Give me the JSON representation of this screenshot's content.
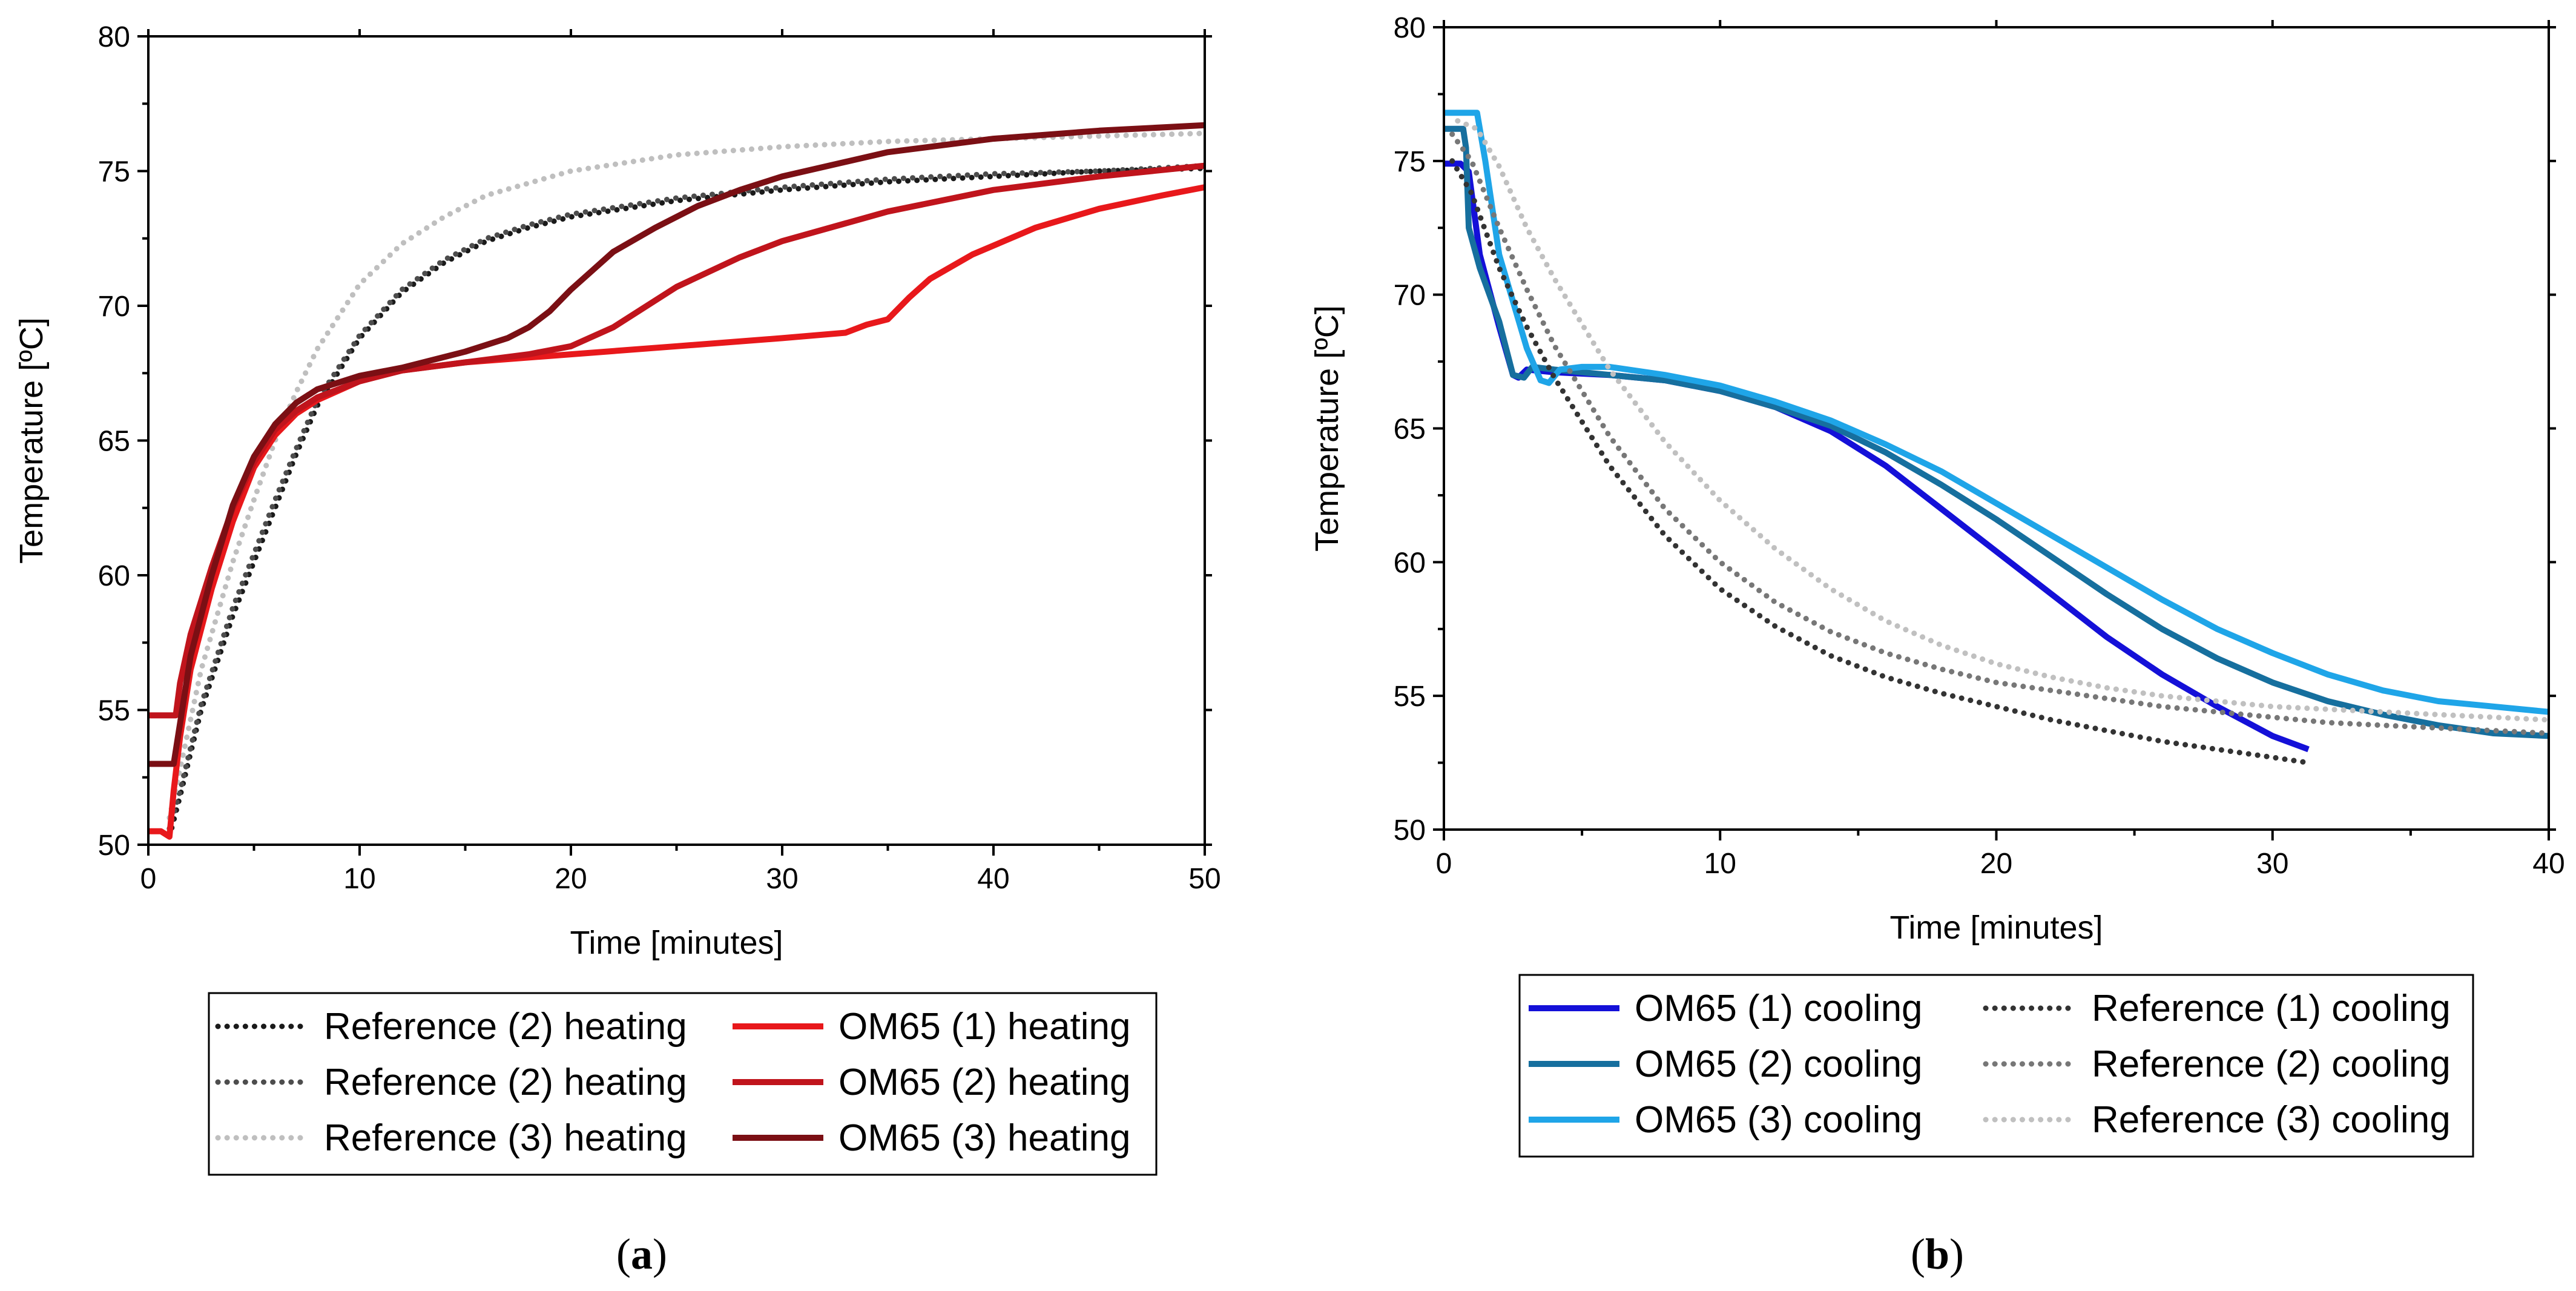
{
  "chart_data": [
    {
      "type": "line",
      "panel": "a",
      "caption_open": "(",
      "caption": "a",
      "caption_close": ")",
      "xlabel": "Time [minutes]",
      "ylabel": "Temperature [ºC]",
      "xlim": [
        0,
        50
      ],
      "ylim": [
        50,
        80
      ],
      "xticks": [
        0,
        10,
        20,
        30,
        40,
        50
      ],
      "yticks": [
        50,
        55,
        60,
        65,
        70,
        75,
        80
      ],
      "legend_position": "below",
      "series": [
        {
          "name": "Reference (2) heating",
          "style": "dotted",
          "color": "#1a1a1a",
          "x": [
            1.0,
            1.5,
            2.5,
            4,
            5,
            6,
            7,
            8,
            10,
            12,
            14,
            16,
            18,
            20,
            25,
            30,
            35,
            40,
            45,
            50
          ],
          "y": [
            50.3,
            51.8,
            55.0,
            58.5,
            60.5,
            62.5,
            64.5,
            66.3,
            68.8,
            70.5,
            71.6,
            72.4,
            72.9,
            73.3,
            73.9,
            74.3,
            74.6,
            74.8,
            75.0,
            75.1
          ]
        },
        {
          "name": "Reference (2) heating",
          "style": "dotted",
          "color": "#4d4d4d",
          "x": [
            1.0,
            1.5,
            2.5,
            4,
            5,
            6,
            7,
            8,
            10,
            12,
            14,
            16,
            18,
            20,
            25,
            30,
            35,
            40,
            45,
            50
          ],
          "y": [
            50.6,
            52.0,
            55.2,
            58.8,
            60.8,
            62.8,
            64.7,
            66.5,
            68.9,
            70.6,
            71.7,
            72.5,
            73.0,
            73.4,
            74.0,
            74.4,
            74.7,
            74.9,
            75.0,
            75.2
          ]
        },
        {
          "name": "Reference (3) heating",
          "style": "dotted",
          "color": "#bfbfbf",
          "x": [
            1.0,
            1.5,
            2.5,
            4,
            5,
            6,
            7,
            8,
            10,
            12,
            14,
            16,
            20,
            25,
            30,
            35,
            40,
            45,
            50
          ],
          "y": [
            51.0,
            52.8,
            56.5,
            60.5,
            62.8,
            65.0,
            66.8,
            68.4,
            70.8,
            72.3,
            73.3,
            74.1,
            75.0,
            75.6,
            75.9,
            76.1,
            76.2,
            76.3,
            76.4
          ]
        },
        {
          "name": "OM65 (1) heating",
          "style": "solid",
          "color": "#e8181b",
          "x": [
            0,
            0.6,
            1.0,
            1.2,
            1.5,
            2.0,
            3.0,
            4.0,
            5.0,
            6.0,
            7.0,
            8.0,
            10,
            12,
            15,
            20,
            25,
            30,
            33,
            34,
            35,
            36,
            37,
            39,
            42,
            45,
            48,
            50
          ],
          "y": [
            50.5,
            50.5,
            50.3,
            52.0,
            54.0,
            56.5,
            59.5,
            62.0,
            64.0,
            65.2,
            66.0,
            66.5,
            67.2,
            67.6,
            67.9,
            68.2,
            68.5,
            68.8,
            69.0,
            69.3,
            69.5,
            70.3,
            71.0,
            71.9,
            72.9,
            73.6,
            74.1,
            74.4
          ]
        },
        {
          "name": "OM65 (2) heating",
          "style": "solid",
          "color": "#c0141c",
          "x": [
            0,
            1.3,
            1.5,
            2.0,
            3.0,
            4.0,
            5.0,
            6.0,
            7.0,
            8.0,
            10,
            12,
            15,
            18,
            20,
            22,
            25,
            28,
            30,
            35,
            40,
            45,
            50
          ],
          "y": [
            54.8,
            54.8,
            56.0,
            57.8,
            60.3,
            62.5,
            64.2,
            65.4,
            66.1,
            66.6,
            67.2,
            67.6,
            67.9,
            68.2,
            68.5,
            69.2,
            70.7,
            71.8,
            72.4,
            73.5,
            74.3,
            74.8,
            75.2
          ]
        },
        {
          "name": "OM65 (3) heating",
          "style": "solid",
          "color": "#7b0f14",
          "x": [
            0,
            1.2,
            1.5,
            2.0,
            3.0,
            4.0,
            5.0,
            6.0,
            7.0,
            8.0,
            10,
            12,
            15,
            17,
            18,
            19,
            20,
            21,
            22,
            24,
            26,
            28,
            30,
            35,
            40,
            45,
            50
          ],
          "y": [
            53.0,
            53.0,
            54.5,
            57.0,
            60.0,
            62.6,
            64.4,
            65.6,
            66.4,
            66.9,
            67.4,
            67.7,
            68.3,
            68.8,
            69.2,
            69.8,
            70.6,
            71.3,
            72.0,
            72.9,
            73.7,
            74.3,
            74.8,
            75.7,
            76.2,
            76.5,
            76.7
          ]
        }
      ]
    },
    {
      "type": "line",
      "panel": "b",
      "caption_open": "(",
      "caption": "b",
      "caption_close": ")",
      "xlabel": "Time [minutes]",
      "ylabel": "Temperature [ºC]",
      "xlim": [
        0,
        40
      ],
      "ylim": [
        50,
        80
      ],
      "xticks": [
        0,
        10,
        20,
        30,
        40
      ],
      "yticks": [
        50,
        55,
        60,
        65,
        70,
        75,
        80
      ],
      "legend_position": "below",
      "series": [
        {
          "name": "OM65 (1) cooling",
          "style": "solid",
          "color": "#1410d8",
          "x": [
            0,
            0.6,
            0.9,
            1.3,
            2.0,
            2.5,
            2.7,
            3.0,
            4.0,
            6,
            8,
            10,
            12,
            14,
            16,
            18,
            20,
            22,
            24,
            26,
            28,
            30,
            31.3
          ],
          "y": [
            74.9,
            74.9,
            74.6,
            71.5,
            68.8,
            67.0,
            66.9,
            67.2,
            67.1,
            67.0,
            66.8,
            66.4,
            65.8,
            64.9,
            63.6,
            62.0,
            60.4,
            58.8,
            57.2,
            55.8,
            54.6,
            53.5,
            53.0
          ]
        },
        {
          "name": "OM65 (2) cooling",
          "style": "solid",
          "color": "#166f9e",
          "x": [
            0,
            0.7,
            0.8,
            0.9,
            1.3,
            2.0,
            2.5,
            2.9,
            3.2,
            4.0,
            6,
            8,
            10,
            12,
            14,
            16,
            18,
            20,
            22,
            24,
            26,
            28,
            30,
            32,
            34,
            36,
            38,
            40
          ],
          "y": [
            76.2,
            76.2,
            75.5,
            72.5,
            71.0,
            69.0,
            67.0,
            66.9,
            67.3,
            67.2,
            67.0,
            66.8,
            66.4,
            65.8,
            65.1,
            64.1,
            62.9,
            61.6,
            60.2,
            58.8,
            57.5,
            56.4,
            55.5,
            54.8,
            54.3,
            53.9,
            53.6,
            53.5
          ]
        },
        {
          "name": "OM65 (3) cooling",
          "style": "solid",
          "color": "#1fa5e8",
          "x": [
            0,
            1.2,
            1.5,
            2.0,
            3.0,
            3.5,
            3.8,
            4.2,
            5.0,
            6,
            8,
            10,
            12,
            14,
            16,
            18,
            20,
            22,
            24,
            26,
            28,
            30,
            32,
            34,
            36,
            38,
            40
          ],
          "y": [
            76.8,
            76.8,
            75.0,
            71.5,
            68.0,
            66.8,
            66.7,
            67.2,
            67.3,
            67.3,
            67.0,
            66.6,
            66.0,
            65.3,
            64.4,
            63.4,
            62.2,
            61.0,
            59.8,
            58.6,
            57.5,
            56.6,
            55.8,
            55.2,
            54.8,
            54.6,
            54.4
          ]
        },
        {
          "name": "Reference (1) cooling",
          "style": "dotted",
          "color": "#333333",
          "x": [
            0.3,
            1.0,
            2.0,
            3.0,
            4.0,
            6,
            8,
            10,
            12,
            14,
            16,
            18,
            20,
            22,
            24,
            26,
            28,
            30,
            31.3
          ],
          "y": [
            75.0,
            73.8,
            71.0,
            68.8,
            66.9,
            63.6,
            61.0,
            59.0,
            57.6,
            56.5,
            55.7,
            55.1,
            54.6,
            54.1,
            53.7,
            53.3,
            53.0,
            52.7,
            52.5
          ]
        },
        {
          "name": "Reference (2) cooling",
          "style": "dotted",
          "color": "#777777",
          "x": [
            0.3,
            1.0,
            2.0,
            3.0,
            4.0,
            6,
            8,
            10,
            12,
            14,
            16,
            18,
            20,
            22,
            24,
            26,
            28,
            30,
            32,
            34,
            36,
            38,
            40
          ],
          "y": [
            76.0,
            75.0,
            72.5,
            70.2,
            68.1,
            64.7,
            62.0,
            60.0,
            58.5,
            57.4,
            56.6,
            56.0,
            55.5,
            55.2,
            54.9,
            54.6,
            54.4,
            54.2,
            54.0,
            53.9,
            53.8,
            53.7,
            53.6
          ]
        },
        {
          "name": "Reference (3) cooling",
          "style": "dotted",
          "color": "#c0c0c0",
          "x": [
            0.5,
            1.2,
            2.0,
            3.0,
            4.0,
            6,
            8,
            10,
            12,
            14,
            16,
            18,
            20,
            22,
            24,
            26,
            28,
            30,
            32,
            34,
            36,
            38,
            40
          ],
          "y": [
            76.5,
            76.2,
            74.8,
            72.5,
            70.6,
            67.2,
            64.5,
            62.3,
            60.5,
            59.0,
            57.8,
            56.9,
            56.2,
            55.7,
            55.3,
            55.0,
            54.8,
            54.6,
            54.5,
            54.4,
            54.3,
            54.2,
            54.1
          ]
        }
      ]
    }
  ]
}
